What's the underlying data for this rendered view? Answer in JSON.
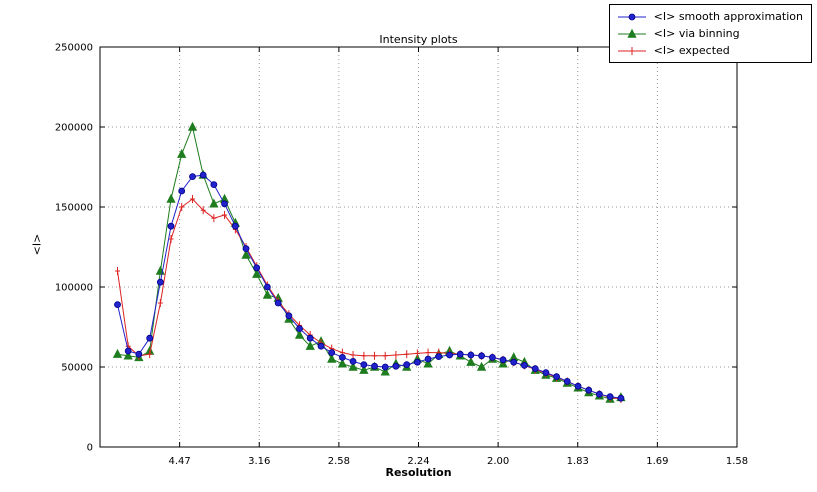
{
  "chart_data": {
    "type": "line",
    "title": "Intensity plots",
    "xlabel": "Resolution",
    "ylabel": "<I>",
    "grid": true,
    "legend_position": "top-right",
    "x_axis": {
      "unit": "inverse_d_squared",
      "min": 0,
      "max": 0.4,
      "tick_positions": [
        0.05,
        0.1,
        0.15,
        0.2,
        0.25,
        0.3,
        0.35,
        0.4
      ],
      "tick_labels": [
        "4.47",
        "3.16",
        "2.58",
        "2.24",
        "2.00",
        "1.83",
        "1.69",
        "1.58"
      ]
    },
    "y_axis": {
      "min": 0,
      "max": 250000,
      "tick_positions": [
        0,
        50000,
        100000,
        150000,
        200000,
        250000
      ],
      "tick_labels": [
        "0",
        "50000",
        "100000",
        "150000",
        "200000",
        "250000"
      ]
    },
    "x": [
      0.011,
      0.0177,
      0.0244,
      0.0312,
      0.0379,
      0.0446,
      0.0513,
      0.0581,
      0.0648,
      0.0715,
      0.0782,
      0.085,
      0.0917,
      0.0984,
      0.1051,
      0.1119,
      0.1186,
      0.1253,
      0.132,
      0.1388,
      0.1455,
      0.1522,
      0.1589,
      0.1657,
      0.1724,
      0.1791,
      0.1858,
      0.1926,
      0.1993,
      0.206,
      0.2127,
      0.2195,
      0.2262,
      0.2329,
      0.2396,
      0.2464,
      0.2531,
      0.2598,
      0.2665,
      0.2733,
      0.28,
      0.2867,
      0.2934,
      0.3002,
      0.3069,
      0.3136,
      0.3203,
      0.3271
    ],
    "series": [
      {
        "name": "<I> smooth approximation",
        "color": "#2222cc",
        "marker": "circle",
        "values": [
          89000,
          60000,
          58000,
          68000,
          103000,
          138000,
          160000,
          169000,
          170000,
          164000,
          152000,
          138000,
          124000,
          112000,
          100000,
          90000,
          82000,
          74000,
          68000,
          63000,
          59000,
          56000,
          53500,
          51500,
          50500,
          50000,
          50500,
          51500,
          53000,
          55000,
          56500,
          57500,
          58000,
          57500,
          57000,
          56000,
          54500,
          53000,
          51000,
          49000,
          46500,
          44000,
          41000,
          38000,
          35500,
          33000,
          31500,
          30500
        ]
      },
      {
        "name": "<I> via binning",
        "color": "#1e7d1e",
        "marker": "triangle",
        "values": [
          58000,
          57000,
          56000,
          60000,
          110000,
          155000,
          183000,
          200000,
          170000,
          152000,
          155000,
          140000,
          120000,
          108000,
          95000,
          93000,
          80000,
          70000,
          63000,
          66000,
          55000,
          52000,
          50000,
          48000,
          50000,
          47000,
          52000,
          50000,
          55000,
          52000,
          58000,
          60000,
          57000,
          53000,
          50000,
          55000,
          52000,
          56000,
          53000,
          48000,
          45000,
          43000,
          40000,
          37000,
          34000,
          32000,
          30000,
          31000
        ]
      },
      {
        "name": "<I> expected",
        "color": "#dd2222",
        "marker": "plus",
        "values": [
          110000,
          63000,
          57000,
          58000,
          90000,
          130000,
          150000,
          155000,
          148000,
          143000,
          145000,
          136000,
          125000,
          113000,
          101000,
          91000,
          83000,
          76000,
          70000,
          65000,
          61500,
          59000,
          57500,
          57000,
          57000,
          57000,
          57500,
          58000,
          58500,
          59000,
          59000,
          58500,
          58000,
          57500,
          57000,
          56000,
          54500,
          53000,
          51000,
          48500,
          46000,
          43500,
          41000,
          38000,
          35500,
          33000,
          31000,
          30000
        ]
      }
    ]
  }
}
